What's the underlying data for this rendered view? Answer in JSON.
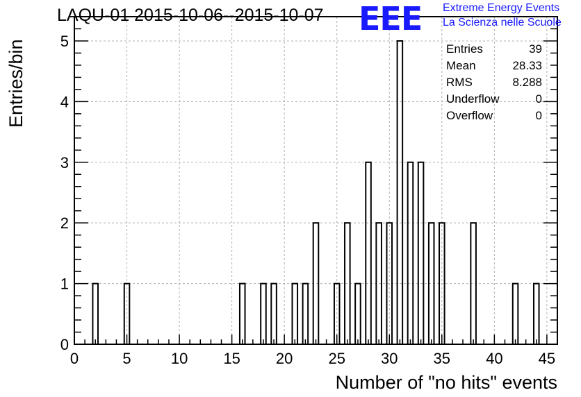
{
  "header": {
    "title": "LAQU-01 2015-10-06--2015-10-07"
  },
  "logo": {
    "mark": "EEE",
    "line1": "Extreme Energy Events",
    "line2": "La Scienza nelle Scuole",
    "color": "#1a1aff"
  },
  "stats": [
    {
      "label": "Entries",
      "value": "39"
    },
    {
      "label": "Mean",
      "value": "28.33"
    },
    {
      "label": "RMS",
      "value": "8.288"
    },
    {
      "label": "Underflow",
      "value": "0"
    },
    {
      "label": "Overflow",
      "value": "0"
    }
  ],
  "chart_data": {
    "type": "bar",
    "title": "LAQU-01 2015-10-06--2015-10-07",
    "xlabel": "Number of \"no hits\" events",
    "ylabel": "Entries/bin",
    "xlim": [
      0,
      46
    ],
    "ylim": [
      0,
      5.4
    ],
    "x_ticks": [
      0,
      5,
      10,
      15,
      20,
      25,
      30,
      35,
      40,
      45
    ],
    "y_ticks": [
      0,
      1,
      2,
      3,
      4,
      5
    ],
    "grid": true,
    "bar_style": "outline",
    "bins": [
      {
        "x": 2,
        "count": 1
      },
      {
        "x": 5,
        "count": 1
      },
      {
        "x": 16,
        "count": 1
      },
      {
        "x": 18,
        "count": 1
      },
      {
        "x": 19,
        "count": 1
      },
      {
        "x": 21,
        "count": 1
      },
      {
        "x": 22,
        "count": 1
      },
      {
        "x": 23,
        "count": 2
      },
      {
        "x": 25,
        "count": 1
      },
      {
        "x": 26,
        "count": 2
      },
      {
        "x": 27,
        "count": 1
      },
      {
        "x": 28,
        "count": 3
      },
      {
        "x": 29,
        "count": 2
      },
      {
        "x": 30,
        "count": 2
      },
      {
        "x": 31,
        "count": 5
      },
      {
        "x": 32,
        "count": 3
      },
      {
        "x": 33,
        "count": 3
      },
      {
        "x": 34,
        "count": 2
      },
      {
        "x": 35,
        "count": 2
      },
      {
        "x": 38,
        "count": 2
      },
      {
        "x": 42,
        "count": 1
      },
      {
        "x": 44,
        "count": 1
      }
    ]
  }
}
